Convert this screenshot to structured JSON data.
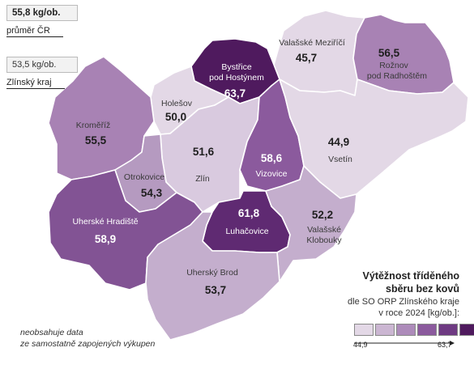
{
  "legend": {
    "cr_value": "55,8 kg/ob.",
    "cr_label": "průměr ČR",
    "kraj_value": "53,5 kg/ob.",
    "kraj_label": "Zlínský kraj",
    "note_line1": "neobsahuje data",
    "note_line2": "ze samostatně zapojených výkupen",
    "title_line1": "Výtěžnost tříděného",
    "title_line2": "sběru bez kovů",
    "sub_line1": "dle SO ORP Zlínského kraje",
    "sub_line2": "v roce 2024 [kg/ob.]:",
    "scale_min": "44,9",
    "scale_max": "63,7",
    "scale_colors": [
      "#e3d8e6",
      "#cbb6d2",
      "#ad8bba",
      "#8b5a9d",
      "#6e3a82",
      "#4f1a5e"
    ]
  },
  "regions": [
    {
      "id": "valasske-mezirici",
      "name": "Valašské Meziříčí",
      "value": "45,7",
      "color": "#e3d8e6"
    },
    {
      "id": "roznov",
      "name_line1": "Rožnov",
      "name_line2": "pod Radhoštěm",
      "value": "56,5",
      "color": "#a882b4"
    },
    {
      "id": "bystrice",
      "name_line1": "Bystřice",
      "name_line2": "pod Hostýnem",
      "value": "63,7",
      "color": "#4f1a5e"
    },
    {
      "id": "holesov",
      "name": "Holešov",
      "value": "50,0",
      "color": "#e3d8e6"
    },
    {
      "id": "kromeriz",
      "name": "Kroměříž",
      "value": "55,5",
      "color": "#a882b4"
    },
    {
      "id": "zlin",
      "name": "Zlín",
      "value": "51,6",
      "color": "#d9cadf"
    },
    {
      "id": "vizovice",
      "name": "Vizovice",
      "value": "58,6",
      "color": "#8b5a9d"
    },
    {
      "id": "vsetin",
      "name": "Vsetín",
      "value": "44,9",
      "color": "#e3d8e6"
    },
    {
      "id": "otrokovice",
      "name": "Otrokovice",
      "value": "54,3",
      "color": "#b59ac0"
    },
    {
      "id": "uherske-hradiste",
      "name": "Uherské Hradiště",
      "value": "58,9",
      "color": "#825394"
    },
    {
      "id": "luhacovice",
      "name": "Luhačovice",
      "value": "61,8",
      "color": "#5f2a72"
    },
    {
      "id": "valasske-klobouky",
      "name_line1": "Valašské",
      "name_line2": "Klobouky",
      "value": "52,2",
      "color": "#c4aecd"
    },
    {
      "id": "uhersky-brod",
      "name": "Uherský Brod",
      "value": "53,7",
      "color": "#c4aecd"
    }
  ]
}
